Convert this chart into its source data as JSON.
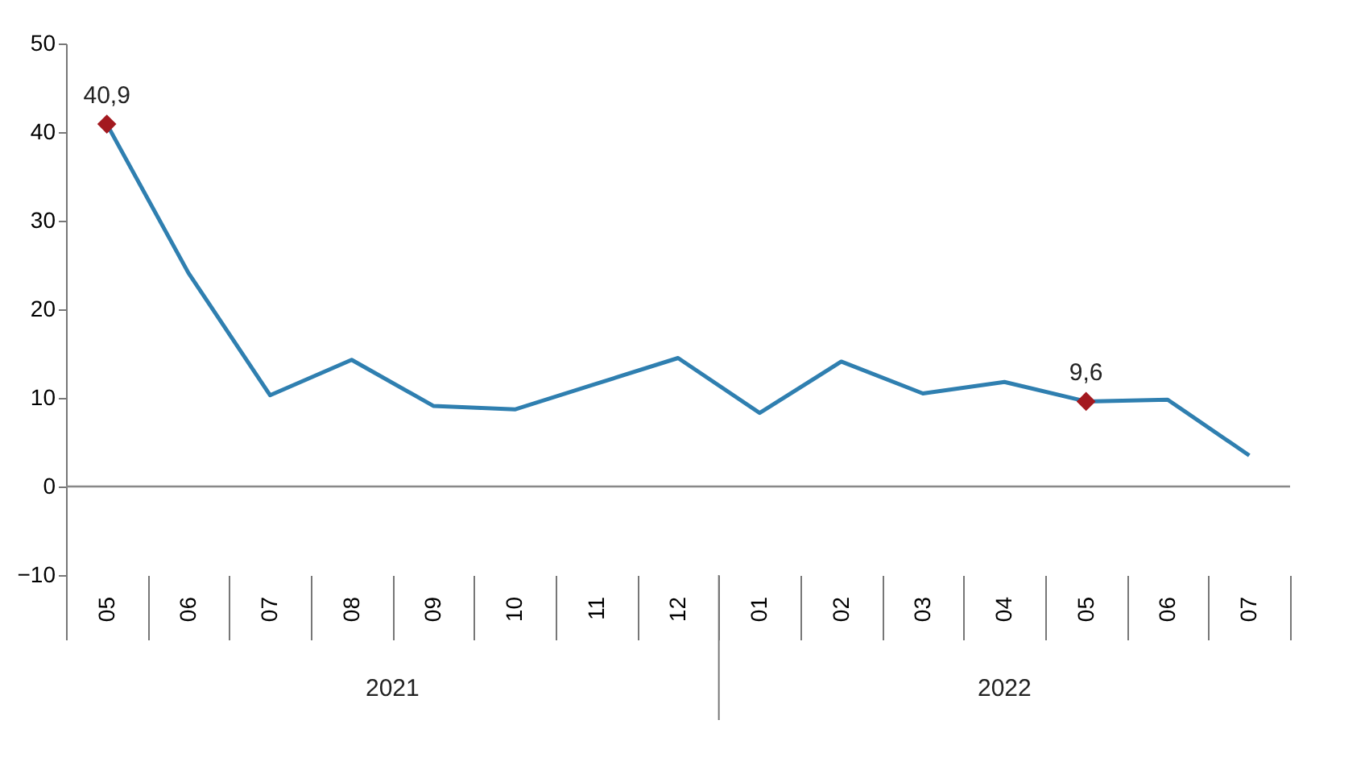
{
  "chart_data": {
    "type": "line",
    "categories": [
      "05",
      "06",
      "07",
      "08",
      "09",
      "10",
      "11",
      "12",
      "01",
      "02",
      "03",
      "04",
      "05",
      "06",
      "07"
    ],
    "series": [
      {
        "color": "#2f7fb0",
        "line_style": "solid",
        "marker": "none",
        "values": [
          40.9,
          24.1,
          10.3,
          14.3,
          9.1,
          8.7,
          11.6,
          14.5,
          8.3,
          14.1,
          10.5,
          11.8,
          9.6,
          9.8,
          3.5
        ]
      },
      {
        "type": "scatter",
        "color": "#a3191f",
        "marker": "diamond",
        "values": [
          40.9,
          null,
          null,
          null,
          null,
          null,
          null,
          null,
          null,
          null,
          null,
          null,
          9.6,
          null,
          null
        ],
        "value_labels": [
          "40,9",
          null,
          null,
          null,
          null,
          null,
          null,
          null,
          null,
          null,
          null,
          null,
          "9,6",
          null,
          null
        ]
      }
    ],
    "ylim": [
      -10,
      50
    ],
    "yticks": [
      -10,
      0,
      10,
      20,
      30,
      40,
      50
    ],
    "ref_lines": [
      {
        "axis": "y",
        "value": 0,
        "color": "#888888"
      }
    ],
    "annotations": [
      "2021",
      "2022"
    ],
    "grid": false
  }
}
